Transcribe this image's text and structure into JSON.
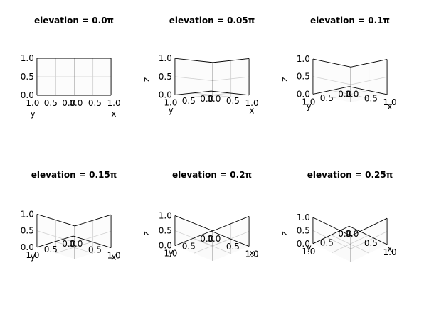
{
  "chart_data": [
    {
      "type": "surface-3d-empty",
      "title": "elevation = 0.0π",
      "elevation_pi": 0.0,
      "xlabel": "x",
      "ylabel": "y",
      "zlabel": "",
      "xlim": [
        0,
        1
      ],
      "ylim": [
        0,
        1
      ],
      "zlim": [
        0,
        1
      ],
      "x_ticks": [
        "0.0",
        "0.5",
        "1.0"
      ],
      "y_ticks": [
        "1.0",
        "0.5",
        "0.0"
      ],
      "z_ticks": [
        "1.0",
        "0.5",
        "0.0"
      ],
      "grid": true
    },
    {
      "type": "surface-3d-empty",
      "title": "elevation = 0.05π",
      "elevation_pi": 0.05,
      "xlabel": "x",
      "ylabel": "y",
      "zlabel": "z",
      "xlim": [
        0,
        1
      ],
      "ylim": [
        0,
        1
      ],
      "zlim": [
        0,
        1
      ],
      "x_ticks": [
        "0.0",
        "0.5",
        "1.0"
      ],
      "y_ticks": [
        "1.0",
        "0.5",
        "0.0"
      ],
      "z_ticks": [
        "1.0",
        "0.5",
        "0.0"
      ],
      "grid": true
    },
    {
      "type": "surface-3d-empty",
      "title": "elevation = 0.1π",
      "elevation_pi": 0.1,
      "xlabel": "x",
      "ylabel": "y",
      "zlabel": "z",
      "xlim": [
        0,
        1
      ],
      "ylim": [
        0,
        1
      ],
      "zlim": [
        0,
        1
      ],
      "x_ticks": [
        "0.0",
        "0.5",
        "1.0"
      ],
      "y_ticks": [
        "1.0",
        "0.5",
        "0.0"
      ],
      "z_ticks": [
        "1.0",
        "0.5",
        "0.0"
      ],
      "grid": true
    },
    {
      "type": "surface-3d-empty",
      "title": "elevation = 0.15π",
      "elevation_pi": 0.15,
      "xlabel": "x",
      "ylabel": "y",
      "zlabel": "",
      "xlim": [
        0,
        1
      ],
      "ylim": [
        0,
        1
      ],
      "zlim": [
        0,
        1
      ],
      "x_ticks": [
        "0.0",
        "0.5",
        "1.0"
      ],
      "y_ticks": [
        "1.0",
        "0.5",
        "0.0"
      ],
      "z_ticks": [
        "1.0",
        "0.5",
        "0.0"
      ],
      "grid": true
    },
    {
      "type": "surface-3d-empty",
      "title": "elevation = 0.2π",
      "elevation_pi": 0.2,
      "xlabel": "x",
      "ylabel": "y",
      "zlabel": "z",
      "xlim": [
        0,
        1
      ],
      "ylim": [
        0,
        1
      ],
      "zlim": [
        0,
        1
      ],
      "x_ticks": [
        "0.0",
        "0.5",
        "1.0"
      ],
      "y_ticks": [
        "1.0",
        "0.5",
        "0.0"
      ],
      "z_ticks": [
        "1.0",
        "0.5",
        "0.0"
      ],
      "grid": true
    },
    {
      "type": "surface-3d-empty",
      "title": "elevation = 0.25π",
      "elevation_pi": 0.25,
      "xlabel": "x",
      "ylabel": "y",
      "zlabel": "z",
      "xlim": [
        0,
        1
      ],
      "ylim": [
        0,
        1
      ],
      "zlim": [
        0,
        1
      ],
      "x_ticks": [
        "0.0",
        "0.5",
        "1.0"
      ],
      "y_ticks": [
        "1.0",
        "0.5",
        "0.0"
      ],
      "z_ticks": [
        "1.0",
        "0.5",
        "0.0"
      ],
      "grid": true
    }
  ]
}
